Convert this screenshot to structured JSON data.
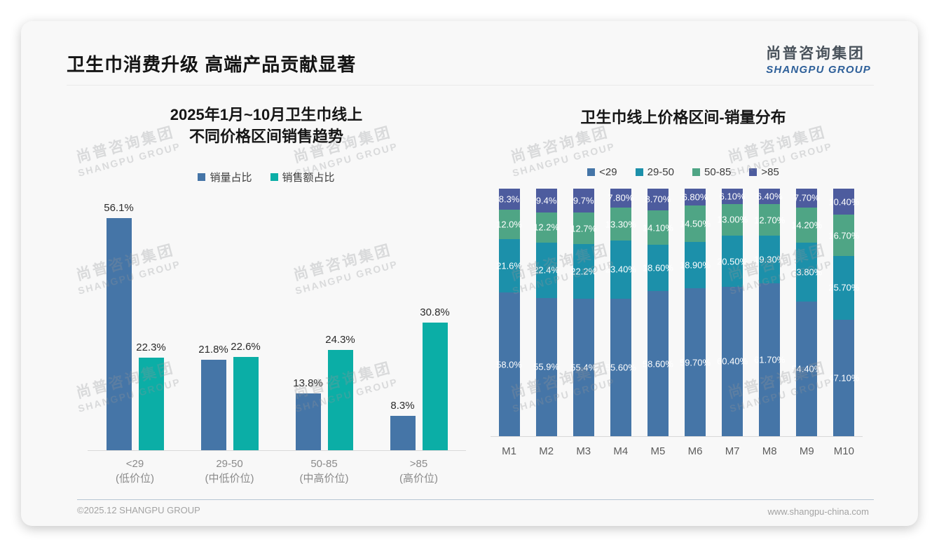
{
  "page": {
    "title": "卫生巾消费升级 高端产品贡献显著",
    "logo": {
      "cn": "尚普咨询集团",
      "en": "SHANGPU GROUP"
    },
    "watermark": {
      "cn": "尚普咨询集团",
      "en": "SHANGPU GROUP"
    },
    "footer": {
      "left": "©2025.12 SHANGPU GROUP",
      "right": "www.shangpu-china.com"
    }
  },
  "colors": {
    "series_blue": "#4575A7",
    "series_teal": "#0BAEA6",
    "stack_teal": "#1C90AA",
    "stack_green": "#4FA585",
    "stack_slate": "#4D5C9E",
    "logo_blue": "#2d5f99",
    "slide_bg": "#f8f8f8"
  },
  "chart_data": [
    {
      "type": "bar",
      "title": "2025年1月~10月卫生巾线上 不同价格区间销售趋势",
      "title_lines": [
        "2025年1月~10月卫生巾线上",
        "不同价格区间销售趋势"
      ],
      "categories": [
        "<29",
        "29-50",
        "50-85",
        ">85"
      ],
      "category_sublabels": [
        "(低价位)",
        "(中低价位)",
        "(中高价位)",
        "(高价位)"
      ],
      "series": [
        {
          "name": "销量占比",
          "color": "#4575A7",
          "values": [
            56.1,
            21.8,
            13.8,
            8.3
          ],
          "labels": [
            "56.1%",
            "21.8%",
            "13.8%",
            "8.3%"
          ]
        },
        {
          "name": "销售额占比",
          "color": "#0BAEA6",
          "values": [
            22.3,
            22.6,
            24.3,
            30.8
          ],
          "labels": [
            "22.3%",
            "22.6%",
            "24.3%",
            "30.8%"
          ]
        }
      ],
      "ylim": [
        0,
        60
      ],
      "grid": false,
      "legend_position": "top"
    },
    {
      "type": "stacked-bar-100",
      "title": "卫生巾线上价格区间-销量分布",
      "categories": [
        "M1",
        "M2",
        "M3",
        "M4",
        "M5",
        "M6",
        "M7",
        "M8",
        "M9",
        "M10"
      ],
      "series": [
        {
          "name": "<29",
          "color": "#4575A7",
          "values": [
            58.0,
            55.9,
            55.4,
            55.6,
            58.6,
            59.7,
            60.4,
            61.7,
            54.4,
            47.1
          ],
          "labels": [
            "58.0%",
            "55.9%",
            "55.4%",
            "55.60%",
            "58.60%",
            "59.70%",
            "60.40%",
            "61.70%",
            "54.40%",
            "47.10%"
          ]
        },
        {
          "name": "29-50",
          "color": "#1C90AA",
          "values": [
            21.6,
            22.4,
            22.2,
            23.4,
            18.6,
            18.9,
            20.5,
            19.3,
            23.8,
            25.7
          ],
          "labels": [
            "21.6%",
            "22.4%",
            "22.2%",
            "23.40%",
            "18.60%",
            "18.90%",
            "20.50%",
            "19.30%",
            "23.80%",
            "25.70%"
          ]
        },
        {
          "name": "50-85",
          "color": "#4FA585",
          "values": [
            12.0,
            12.2,
            12.7,
            13.3,
            14.1,
            14.5,
            13.0,
            12.7,
            14.2,
            16.7
          ],
          "labels": [
            "12.0%",
            "12.2%",
            "12.7%",
            "13.30%",
            "14.10%",
            "14.50%",
            "13.00%",
            "12.70%",
            "14.20%",
            "16.70%"
          ]
        },
        {
          "name": ">85",
          "color": "#4D5C9E",
          "values": [
            8.3,
            9.4,
            9.7,
            7.8,
            8.7,
            6.8,
            6.1,
            6.4,
            7.7,
            10.4
          ],
          "labels": [
            "8.3%",
            "9.4%",
            "9.7%",
            "7.80%",
            "8.70%",
            "6.80%",
            "6.10%",
            "6.40%",
            "7.70%",
            "10.40%"
          ]
        }
      ],
      "ylim": [
        0,
        100
      ],
      "grid": false,
      "legend_position": "top"
    }
  ]
}
